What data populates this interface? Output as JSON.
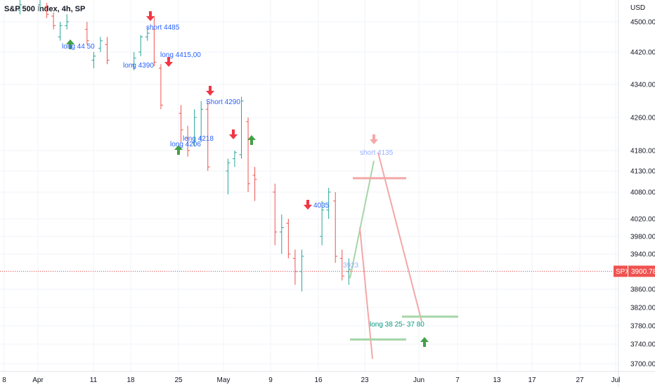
{
  "window": {
    "title": "S&P 500 Index, 4h, SP"
  },
  "colors": {
    "up": "#26a69a",
    "down": "#ef5350",
    "price_line": "#ef5350",
    "annotation_text": "#2962ff"
  },
  "chart_data": {
    "type": "ohlc",
    "title": "S&P 500 Index, 4h, SP",
    "currency": "USD",
    "symbol": "SPX",
    "last_price": 3900.78,
    "last_price_label": "3900.78",
    "yaxis": {
      "ticks": [
        3700,
        3740,
        3780,
        3820,
        3860,
        3900,
        3940,
        3980,
        4020,
        4080,
        4130,
        4180,
        4260,
        4340,
        4420,
        4500
      ],
      "tick_labels": [
        "3700.00",
        "3740.00",
        "3780.00",
        "3820.00",
        "3860.00",
        "3900.00",
        "3940.00",
        "3980.00",
        "4020.00",
        "4080.00",
        "4130.00",
        "4180.00",
        "4260.00",
        "4340.00",
        "4420.00",
        "4500.00"
      ],
      "scale": "log",
      "ylim": [
        3685,
        4560
      ]
    },
    "xaxis": {
      "tick_labels": [
        "8",
        "Apr",
        "11",
        "18",
        "25",
        "May",
        "9",
        "16",
        "23",
        "Jun",
        "7",
        "13",
        "17",
        "27",
        "Jul"
      ]
    },
    "bars": [
      [
        "4-1",
        4530,
        4560,
        4520,
        4545
      ],
      [
        "4-4",
        4545,
        4580,
        4530,
        4560
      ],
      [
        "4-5",
        4540,
        4550,
        4510,
        4520
      ],
      [
        "4-6",
        4515,
        4525,
        4480,
        4490
      ],
      [
        "4-7",
        4460,
        4500,
        4450,
        4490
      ],
      [
        "4-8",
        4490,
        4520,
        4480,
        4500
      ],
      [
        "4-11",
        4480,
        4500,
        4440,
        4450
      ],
      [
        "4-12",
        4400,
        4420,
        4380,
        4410
      ],
      [
        "4-13",
        4430,
        4460,
        4420,
        4450
      ],
      [
        "4-14",
        4440,
        4460,
        4390,
        4400
      ],
      [
        "4-18",
        4390,
        4420,
        4375,
        4405
      ],
      [
        "4-19",
        4420,
        4465,
        4410,
        4460
      ],
      [
        "4-20",
        4460,
        4485,
        4450,
        4470
      ],
      [
        "4-21",
        4480,
        4515,
        4385,
        4395
      ],
      [
        "4-22",
        4380,
        4390,
        4280,
        4290
      ],
      [
        "4-25",
        4270,
        4290,
        4200,
        4230
      ],
      [
        "4-26",
        4210,
        4240,
        4165,
        4180
      ],
      [
        "4-27",
        4200,
        4280,
        4190,
        4260
      ],
      [
        "4-28",
        4210,
        4300,
        4200,
        4280
      ],
      [
        "4-29",
        4280,
        4300,
        4130,
        4140
      ],
      [
        "5-2",
        4130,
        4160,
        4075,
        4150
      ],
      [
        "5-3",
        4160,
        4180,
        4140,
        4175
      ],
      [
        "5-4",
        4170,
        4310,
        4160,
        4300
      ],
      [
        "5-5",
        4250,
        4260,
        4080,
        4100
      ],
      [
        "5-6",
        4120,
        4140,
        4060,
        4110
      ],
      [
        "5-9",
        4080,
        4100,
        3960,
        3990
      ],
      [
        "5-10",
        3990,
        4030,
        3940,
        4000
      ],
      [
        "5-11",
        4010,
        4020,
        3930,
        3940
      ],
      [
        "5-12",
        3930,
        3950,
        3870,
        3900
      ],
      [
        "5-13",
        3900,
        3950,
        3855,
        3935
      ],
      [
        "5-16",
        3980,
        4060,
        3960,
        4040
      ],
      [
        "5-17",
        4040,
        4090,
        4020,
        4080
      ],
      [
        "5-18",
        4060,
        4080,
        3920,
        3935
      ],
      [
        "5-19",
        3930,
        3950,
        3880,
        3890
      ],
      [
        "5-20",
        3900,
        3930,
        3870,
        3905
      ]
    ],
    "annotations": [
      {
        "text": "short 4485",
        "type": "short"
      },
      {
        "text": "long  44 50",
        "type": "long"
      },
      {
        "text": "long  4415,00",
        "type": "long"
      },
      {
        "text": "long 4390",
        "type": "long"
      },
      {
        "text": "Short 4290",
        "type": "short"
      },
      {
        "text": "long  4218",
        "type": "long"
      },
      {
        "text": "long  4206",
        "type": "long"
      },
      {
        "text": "4035",
        "type": "short"
      },
      {
        "text": "3923",
        "type": "long"
      },
      {
        "text": "short 4135",
        "type": "short"
      },
      {
        "text": "long   38 25- 37 80",
        "type": "long"
      }
    ]
  }
}
